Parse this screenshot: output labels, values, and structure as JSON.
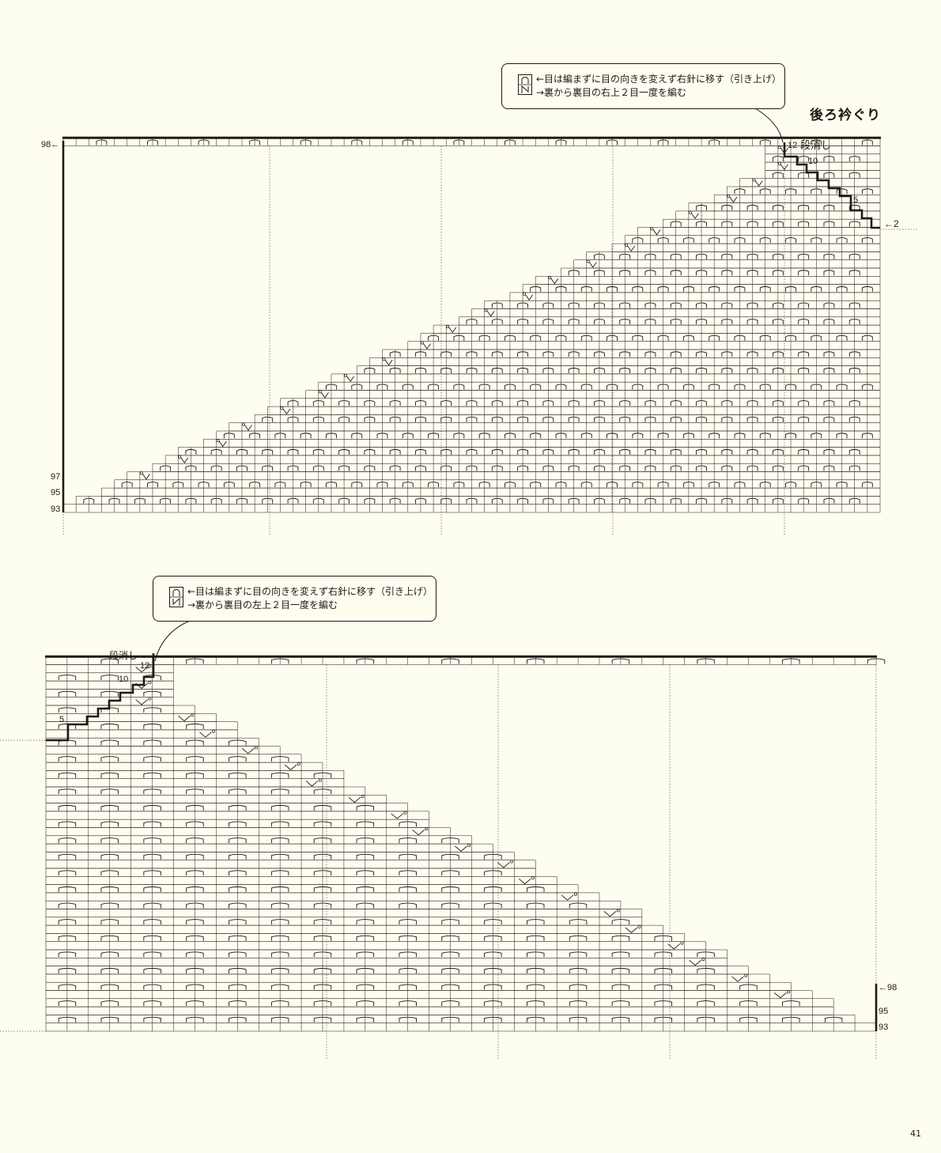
{
  "page": {
    "title": "後ろ衿ぐり",
    "page_number": "41"
  },
  "colors": {
    "background": "#fdfdf0",
    "ink": "#231815"
  },
  "chart_top": {
    "note_line1": "←目は編まずに目の向きを変えず右針に移す（引き上げ）",
    "note_line2": "→裏から裏目の右上２目一度を編む",
    "note_symbol": "slip-stitch-right-decrease-icon",
    "label_row98": "98←",
    "label_row97": "97",
    "label_row95": "95",
    "label_row93": "93",
    "label_12": "12",
    "label_danke": "段消し",
    "label_10": "10",
    "label_5": "5",
    "label_row2": "←2"
  },
  "chart_bottom": {
    "note_line1": "←目は編まずに目の向きを変えず右針に移す（引き上げ）",
    "note_line2": "→裏から裏目の左上２目一度を編む",
    "note_symbol": "slip-stitch-left-decrease-icon",
    "label_danke": "段消し→",
    "label_12": "12",
    "label_10": "10",
    "label_5": "5",
    "label_row98": "←98",
    "label_row95": "95",
    "label_row93": "93"
  }
}
